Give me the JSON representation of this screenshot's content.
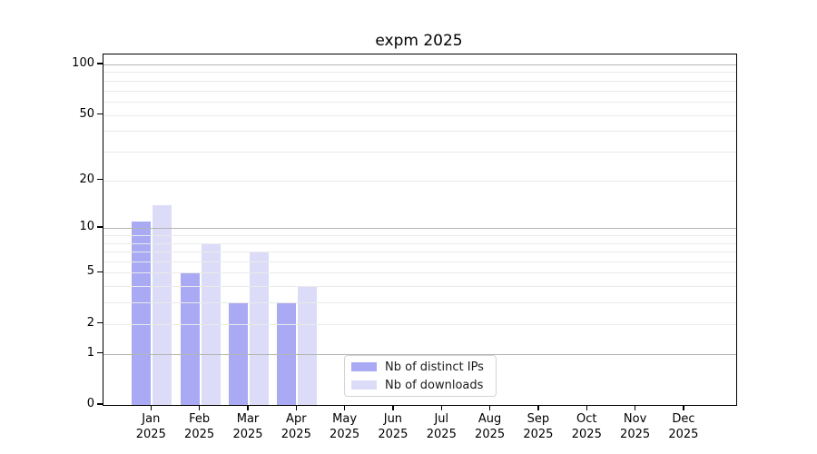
{
  "figure": {
    "title": "expm 2025",
    "background": "#ffffff"
  },
  "chart_data": {
    "type": "bar",
    "title": "expm 2025",
    "xlabel": "",
    "ylabel": "",
    "x_categories": [
      {
        "label": "Jan",
        "sub": "2025"
      },
      {
        "label": "Feb",
        "sub": "2025"
      },
      {
        "label": "Mar",
        "sub": "2025"
      },
      {
        "label": "Apr",
        "sub": "2025"
      },
      {
        "label": "May",
        "sub": "2025"
      },
      {
        "label": "Jun",
        "sub": "2025"
      },
      {
        "label": "Jul",
        "sub": "2025"
      },
      {
        "label": "Aug",
        "sub": "2025"
      },
      {
        "label": "Sep",
        "sub": "2025"
      },
      {
        "label": "Oct",
        "sub": "2025"
      },
      {
        "label": "Nov",
        "sub": "2025"
      },
      {
        "label": "Dec",
        "sub": "2025"
      }
    ],
    "series": [
      {
        "name": "Nb of distinct IPs",
        "color": "#a9a9f4",
        "values": [
          11,
          5,
          3,
          3,
          0,
          0,
          0,
          0,
          0,
          0,
          0,
          0
        ]
      },
      {
        "name": "Nb of downloads",
        "color": "#dcdcf9",
        "values": [
          14,
          8,
          7,
          4,
          0,
          0,
          0,
          0,
          0,
          0,
          0,
          0
        ]
      }
    ],
    "y_axis": {
      "scale": "log1p",
      "tick_labels": [
        0,
        1,
        2,
        5,
        10,
        20,
        50,
        100
      ],
      "major_gridlines": [
        1,
        10,
        100
      ],
      "minor_gridlines": [
        2,
        3,
        4,
        5,
        6,
        7,
        8,
        9,
        20,
        30,
        40,
        50,
        60,
        70,
        80,
        90
      ],
      "ylim": [
        0,
        115
      ],
      "grid": true
    },
    "legend": {
      "position": "inside lower center-right",
      "entries": [
        "Nb of distinct IPs",
        "Nb of downloads"
      ]
    }
  },
  "colors": {
    "series_dark": "#a9a9f4",
    "series_light": "#dcdcf9",
    "major_grid": "#b5b5b5",
    "minor_grid": "#eaeaea",
    "spine": "#000000",
    "text": "#000000",
    "legend_border": "#d4d4d4"
  }
}
